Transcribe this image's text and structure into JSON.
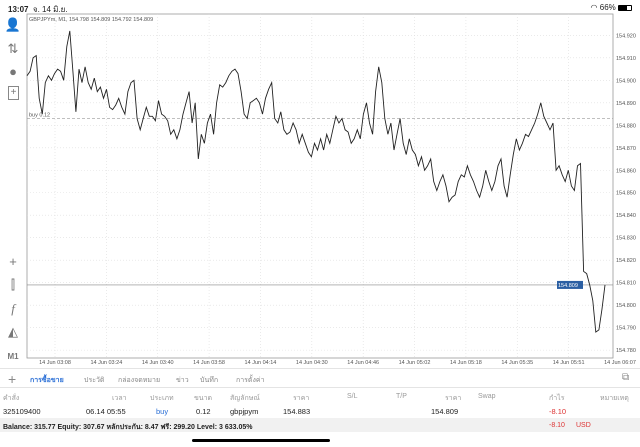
{
  "status": {
    "time": "13:07",
    "date": "จ. 14 มิ.ย.",
    "battery": "66%",
    "battery_level": 66
  },
  "chart": {
    "symbol_info": "GBPJPYm, M1, 154.798 154.809 154.792 154.809",
    "timeframe": "M1",
    "buy_label": "buy 0.12",
    "buy_price": 154.883,
    "current_price": 154.809,
    "current_price_label": "154.809",
    "line_color": "#222222",
    "price_box_color": "#2b5fa3",
    "price_ticks": [
      "154.920",
      "154.910",
      "154.900",
      "154.890",
      "154.880",
      "154.870",
      "154.860",
      "154.850",
      "154.840",
      "154.830",
      "154.820",
      "154.810",
      "154.800",
      "154.790",
      "154.780"
    ],
    "time_ticks": [
      "14 Jun 03:08",
      "14 Jun 03:24",
      "14 Jun 03:40",
      "14 Jun 03:58",
      "14 Jun 04:14",
      "14 Jun 04:30",
      "14 Jun 04:46",
      "14 Jun 05:02",
      "14 Jun 05:18",
      "14 Jun 05:35",
      "14 Jun 05:51",
      "14 Jun 06:07"
    ],
    "ylim": [
      154.7765,
      154.9295
    ],
    "close_prices": [
      154.902,
      154.904,
      154.91,
      154.911,
      154.892,
      154.885,
      154.899,
      154.902,
      154.9,
      154.903,
      154.905,
      154.904,
      154.9,
      154.915,
      154.922,
      154.904,
      154.886,
      154.905,
      154.899,
      154.906,
      154.899,
      154.896,
      154.901,
      154.895,
      154.897,
      154.892,
      154.896,
      154.888,
      154.887,
      154.889,
      154.892,
      154.888,
      154.885,
      154.895,
      154.899,
      154.9,
      154.883,
      154.878,
      154.883,
      154.888,
      154.884,
      154.884,
      154.882,
      154.891,
      154.885,
      154.884,
      154.882,
      154.876,
      154.878,
      154.874,
      154.878,
      154.885,
      154.89,
      154.895,
      154.881,
      154.89,
      154.865,
      154.876,
      154.872,
      154.881,
      154.885,
      154.876,
      154.89,
      154.898,
      154.897,
      154.899,
      154.902,
      154.904,
      154.905,
      154.903,
      154.895,
      154.885,
      154.883,
      154.89,
      154.891,
      154.892,
      154.89,
      154.885,
      154.892,
      154.896,
      154.899,
      154.883,
      154.881,
      154.886,
      154.878,
      154.876,
      154.877,
      154.881,
      154.878,
      154.872,
      154.876,
      154.872,
      154.868,
      154.866,
      154.872,
      154.869,
      154.874,
      154.869,
      154.876,
      154.872,
      154.878,
      154.884,
      154.881,
      154.883,
      154.878,
      154.877,
      154.872,
      154.874,
      154.878,
      154.874,
      154.885,
      154.89,
      154.881,
      154.876,
      154.895,
      154.906,
      154.899,
      154.883,
      154.876,
      154.881,
      154.869,
      154.876,
      154.883,
      154.872,
      154.867,
      154.874,
      154.869,
      154.867,
      154.862,
      154.866,
      154.86,
      154.862,
      154.865,
      154.855,
      154.851,
      154.855,
      154.858,
      154.853,
      154.846,
      154.848,
      154.849,
      154.855,
      154.858,
      154.857,
      154.862,
      154.858,
      154.855,
      154.851,
      154.848,
      154.853,
      154.86,
      154.855,
      154.851,
      154.855,
      154.862,
      154.865,
      154.853,
      154.848,
      154.858,
      154.867,
      154.874,
      154.869,
      154.872,
      154.876,
      154.875,
      154.878,
      154.881,
      154.885,
      154.89,
      154.884,
      154.881,
      154.878,
      154.881,
      154.86,
      154.862,
      154.858,
      154.855,
      154.86,
      154.853,
      154.851,
      154.862,
      154.863,
      154.815,
      154.814,
      154.809,
      154.802,
      154.788,
      154.789,
      154.798,
      154.809
    ]
  },
  "toolbar": {
    "icons": [
      "account-icon",
      "trade-arrows-icon",
      "chat-icon",
      "new-document-icon",
      "crosshair-icon",
      "candlestick-icon",
      "function-icon",
      "objects-icon"
    ],
    "timeframe_label": "M1"
  },
  "tabs": [
    {
      "label": "การซื้อขาย",
      "active": true
    },
    {
      "label": "ประวัติ"
    },
    {
      "label": "กล่องจดหมาย"
    },
    {
      "label": "ข่าว"
    },
    {
      "label": "บันทึก"
    },
    {
      "label": "การตั้งค่า"
    }
  ],
  "table": {
    "headers": [
      "คำสั่ง",
      "เวลา",
      "ประเภท",
      "ขนาด",
      "สัญลักษณ์",
      "ราคา",
      "S/L",
      "T/P",
      "ราคา",
      "Swap",
      "กำไร",
      "หมายเหตุ"
    ],
    "rows": [
      {
        "order": "325109400",
        "time": "06.14 05:55",
        "type": "buy",
        "size": "0.12",
        "symbol": "gbpjpym",
        "open_price": "154.883",
        "sl": "",
        "tp": "",
        "price": "154.809",
        "swap": "",
        "profit": "-8.10",
        "comment": ""
      }
    ],
    "balance_line": "Balance: 315.77 Equity: 307.67 หลักประกัน: 8.47 ฟรี: 299.20 Level: 3 633.05%",
    "total_profit": "-8.10",
    "currency": "USD"
  }
}
